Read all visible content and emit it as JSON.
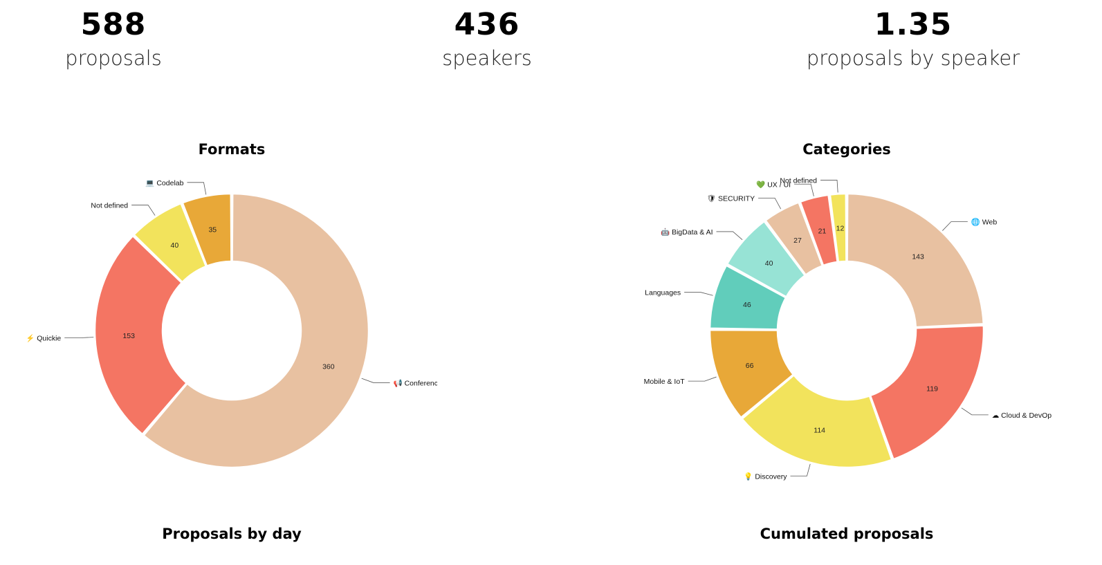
{
  "stats": [
    {
      "value": "588",
      "label": "proposals"
    },
    {
      "value": "436",
      "label": "speakers"
    },
    {
      "value": "1.35",
      "label": "proposals by speaker"
    }
  ],
  "sections": {
    "proposals_by_day": "Proposals by day",
    "cumulated_proposals": "Cumulated proposals"
  },
  "chart_data": [
    {
      "type": "pie",
      "title": "Formats",
      "donut": true,
      "slices": [
        {
          "name": "📢 Conference",
          "value": 360,
          "color": "#e8c1a1",
          "icon": "megaphone-icon"
        },
        {
          "name": "⚡ Quickie",
          "value": 153,
          "color": "#f47563",
          "icon": "lightning-icon"
        },
        {
          "name": "Not defined",
          "value": 40,
          "color": "#f2e35c",
          "icon": ""
        },
        {
          "name": "💻 Codelab",
          "value": 35,
          "color": "#e8a838",
          "icon": "laptop-icon"
        }
      ]
    },
    {
      "type": "pie",
      "title": "Categories",
      "donut": true,
      "slices": [
        {
          "name": "🌐 Web",
          "value": 143,
          "color": "#e8c1a1",
          "icon": "globe-icon"
        },
        {
          "name": "☁ Cloud & DevOps",
          "value": 119,
          "color": "#f47563",
          "icon": "cloud-icon"
        },
        {
          "name": "💡 Discovery",
          "value": 114,
          "color": "#f2e35c",
          "icon": "lightbulb-icon"
        },
        {
          "name": "📱 Mobile & IoT",
          "value": 66,
          "color": "#e8a838",
          "icon": "phone-icon"
        },
        {
          "name": "Languages",
          "value": 46,
          "color": "#61cdbb",
          "icon": ""
        },
        {
          "name": "🤖 BigData & AI",
          "value": 40,
          "color": "#97e3d5",
          "icon": "robot-icon"
        },
        {
          "name": "🛡 SECURITY",
          "value": 27,
          "color": "#e8c1a1",
          "icon": "security-icon"
        },
        {
          "name": "💚 UX / UI",
          "value": 21,
          "color": "#f47563",
          "icon": "heart-icon"
        },
        {
          "name": "Not defined",
          "value": 12,
          "color": "#f2e35c",
          "icon": ""
        }
      ]
    }
  ]
}
